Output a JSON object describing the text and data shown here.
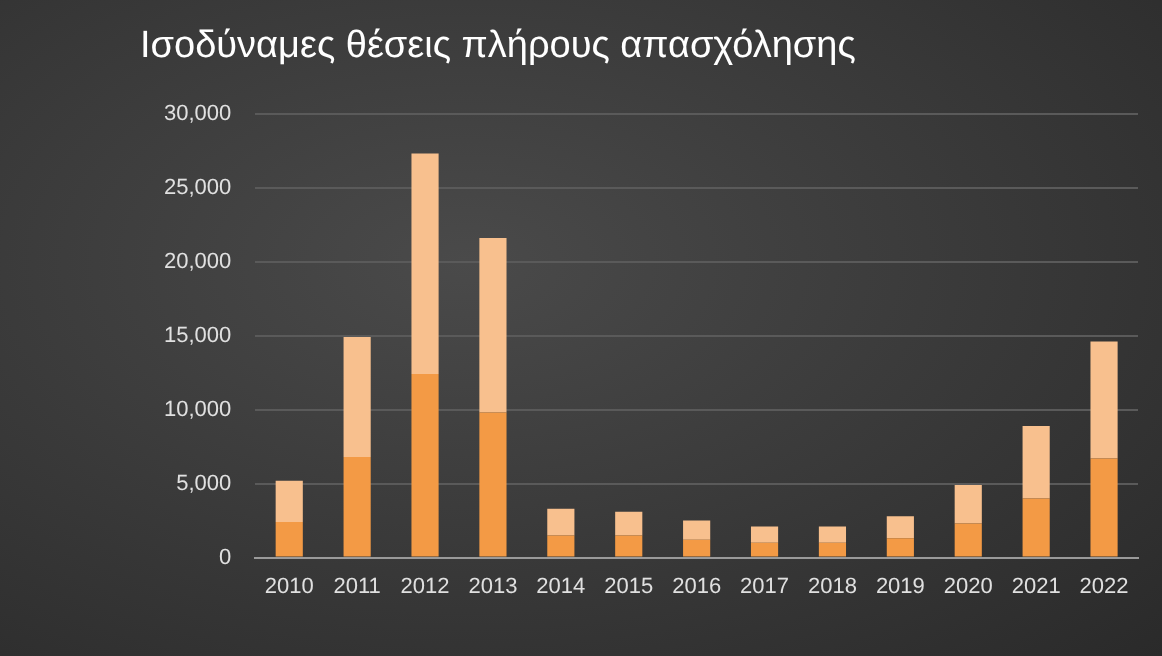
{
  "chart_data": {
    "type": "bar",
    "title": "Ισοδύναμες θέσεις πλήρους απασχόλησης",
    "categories": [
      "2010",
      "2011",
      "2012",
      "2013",
      "2014",
      "2015",
      "2016",
      "2017",
      "2018",
      "2019",
      "2020",
      "2021",
      "2022"
    ],
    "series": [
      {
        "color": "#f39a45",
        "values": [
          2400,
          6800,
          12400,
          9800,
          1500,
          1500,
          1200,
          1000,
          1000,
          1300,
          2300,
          4000,
          6700
        ]
      },
      {
        "color": "#f8c08e",
        "values": [
          2800,
          8100,
          14900,
          11800,
          1800,
          1600,
          1300,
          1100,
          1100,
          1500,
          2600,
          4900,
          7900
        ]
      }
    ],
    "stacked": true,
    "ylim": [
      0,
      30000
    ],
    "yticks": [
      0,
      {
        "value": 5000,
        "label": "5,000"
      },
      {
        "value": 10000,
        "label": "10,000"
      },
      {
        "value": 15000,
        "label": "15,000"
      },
      {
        "value": 20000,
        "label": "20,000"
      },
      {
        "value": 25000,
        "label": "25,000"
      },
      {
        "value": 30000,
        "label": "30,000"
      }
    ],
    "grid": "y",
    "legend": false
  }
}
